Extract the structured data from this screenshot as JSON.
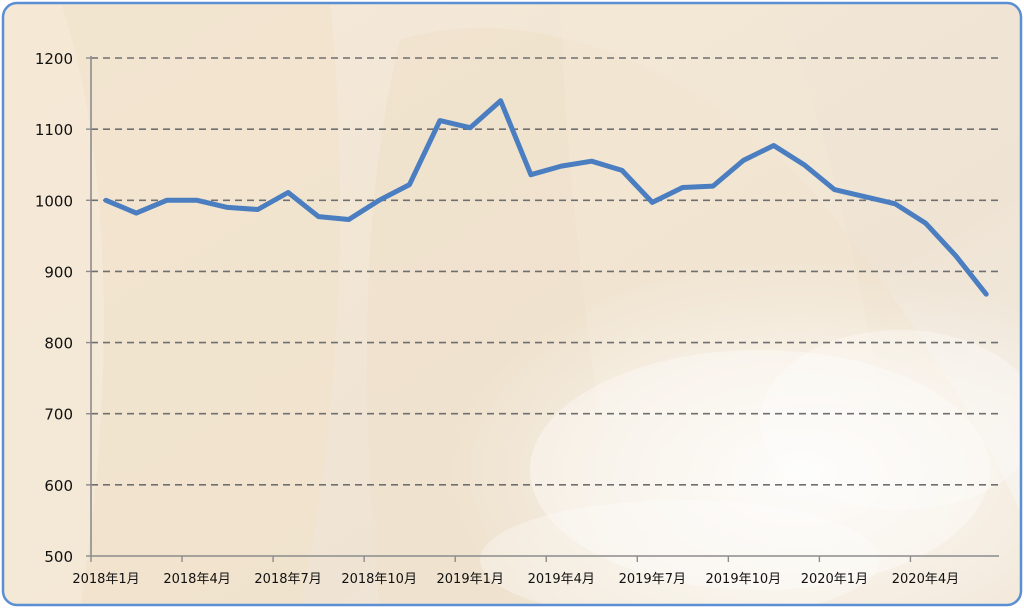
{
  "chart_data": {
    "type": "line",
    "title": "",
    "xlabel": "",
    "ylabel": "",
    "ylim": [
      500,
      1200
    ],
    "yticks": [
      500,
      600,
      700,
      800,
      900,
      1000,
      1100,
      1200
    ],
    "grid": "horizontal dashed",
    "legend": "none",
    "x": [
      "2018年1月",
      "2018年2月",
      "2018年3月",
      "2018年4月",
      "2018年5月",
      "2018年6月",
      "2018年7月",
      "2018年8月",
      "2018年9月",
      "2018年10月",
      "2018年11月",
      "2018年12月",
      "2019年1月",
      "2019年2月",
      "2019年3月",
      "2019年4月",
      "2019年5月",
      "2019年6月",
      "2019年7月",
      "2019年8月",
      "2019年9月",
      "2019年10月",
      "2019年11月",
      "2019年12月",
      "2020年1月",
      "2020年2月",
      "2020年3月",
      "2020年4月",
      "2020年5月",
      "2020年6月"
    ],
    "xtick_labels": [
      "2018年1月",
      "2018年4月",
      "2018年7月",
      "2018年10月",
      "2019年1月",
      "2019年4月",
      "2019年7月",
      "2019年10月",
      "2020年1月",
      "2020年4月"
    ],
    "series": [
      {
        "values": [
          1000,
          982,
          1000,
          1000,
          990,
          987,
          1011,
          977,
          973,
          1000,
          1022,
          1112,
          1102,
          1140,
          1036,
          1048,
          1055,
          1042,
          997,
          1018,
          1020,
          1056,
          1077,
          1050,
          1015,
          1005,
          995,
          968,
          922,
          868
        ]
      }
    ],
    "colors": {
      "line": "#4a7ec0",
      "grid": "#6f6f6f",
      "axis": "#8c8c8c",
      "frame": "#5b8fd4"
    }
  }
}
